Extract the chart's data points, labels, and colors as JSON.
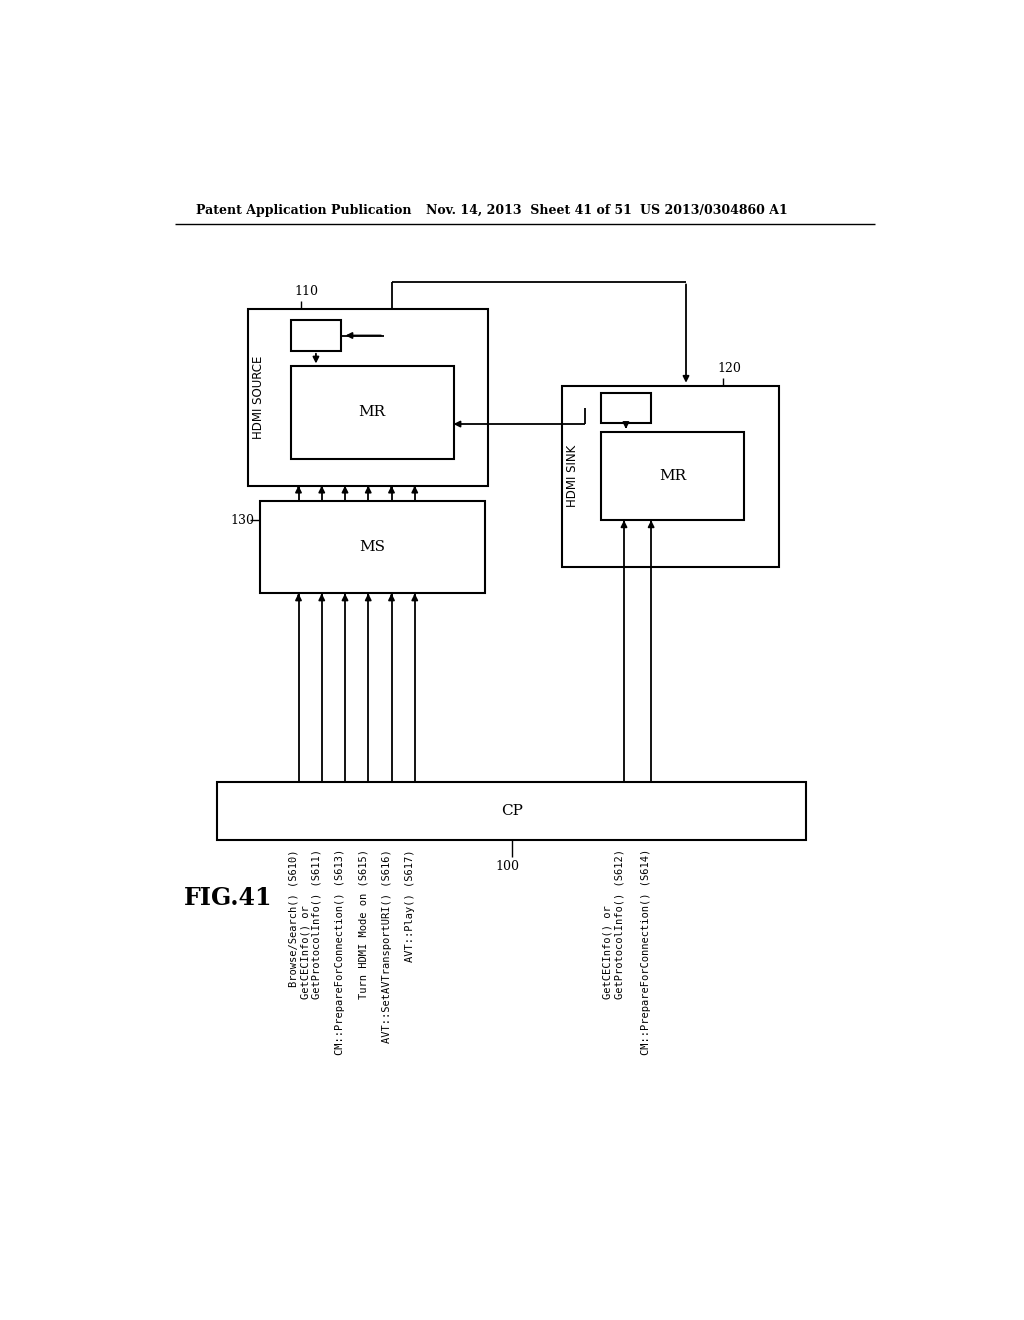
{
  "bg_color": "#ffffff",
  "header_left": "Patent Application Publication",
  "header_mid": "Nov. 14, 2013  Sheet 41 of 51",
  "header_right": "US 2013/0304860 A1",
  "fig_label": "FIG.41",
  "label_110": "110",
  "label_120": "120",
  "label_130": "130",
  "label_100": "100",
  "hdmi_source": "HDMI SOURCE",
  "hdmi_sink": "HDMI SINK",
  "ms_label": "MS",
  "cp_label": "CP",
  "mr_label": "MR",
  "rotated_labels": [
    "Browse/Search() (S610)",
    "GetCECInfo() or\nGetProtocolInfo() (S611)",
    "CM::PrepareForConnection() (S613)",
    "Turn HDMI Mode on (S615)",
    "AVT::SetAVTransportURI() (S616)",
    "AVT::Play() (S617)",
    "GetCECInfo() or\nGetProtocolInfo() (S612)",
    "CM::PrepareForConnection() (S614)"
  ]
}
